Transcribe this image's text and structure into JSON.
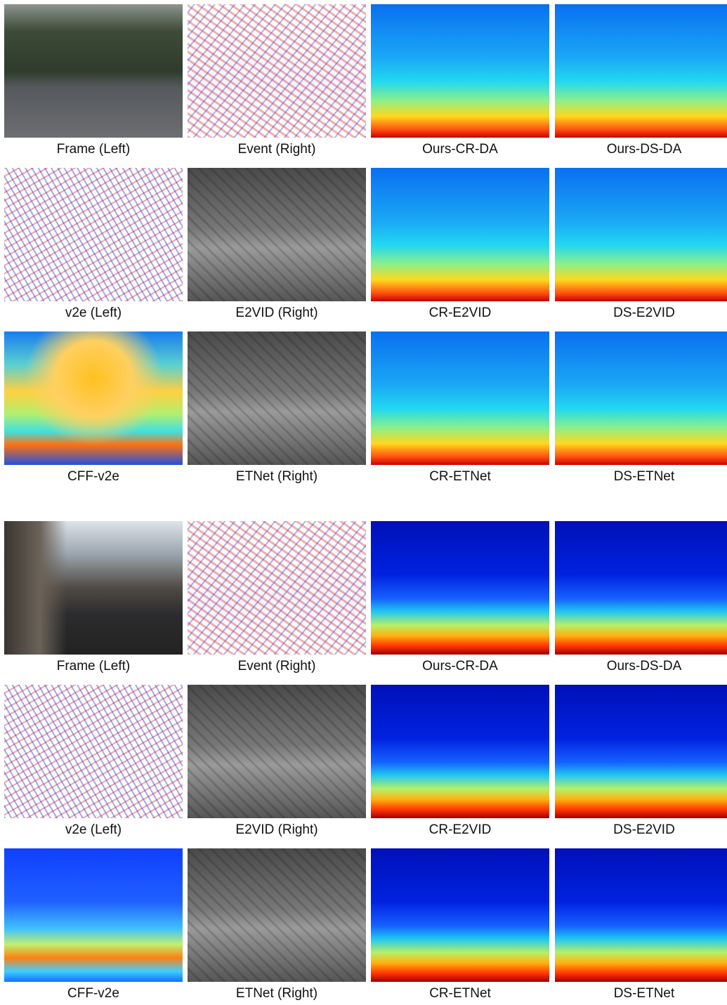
{
  "groups": [
    {
      "rows": [
        {
          "captions": [
            "Frame (Left)",
            "Event (Right)",
            "Ours-CR-DA",
            "Ours-DS-DA"
          ]
        },
        {
          "captions": [
            "v2e (Left)",
            "E2VID (Right)",
            "CR-E2VID",
            "DS-E2VID"
          ]
        },
        {
          "captions": [
            "CFF-v2e",
            "ETNet (Right)",
            "CR-ETNet",
            "DS-ETNet"
          ]
        }
      ]
    },
    {
      "rows": [
        {
          "captions": [
            "Frame (Left)",
            "Event (Right)",
            "Ours-CR-DA",
            "Ours-DS-DA"
          ]
        },
        {
          "captions": [
            "v2e (Left)",
            "E2VID (Right)",
            "CR-E2VID",
            "DS-E2VID"
          ]
        },
        {
          "captions": [
            "CFF-v2e",
            "ETNet (Right)",
            "CR-ETNet",
            "DS-ETNet"
          ]
        }
      ]
    }
  ]
}
